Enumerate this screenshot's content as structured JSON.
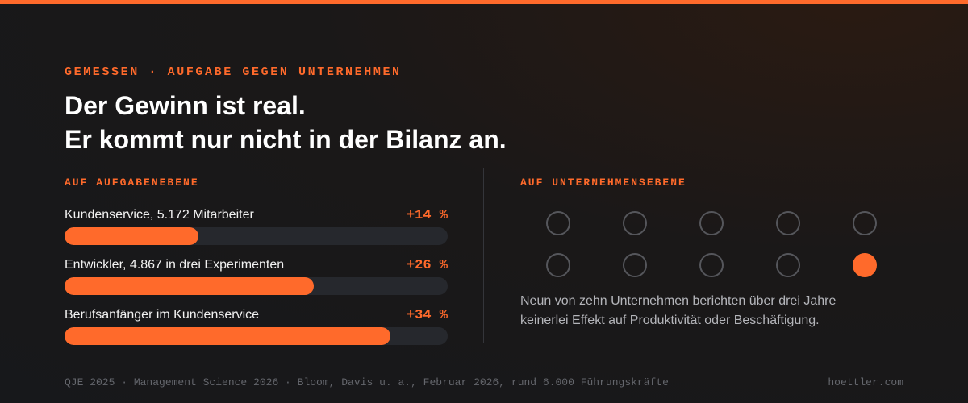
{
  "colors": {
    "accent": "#ff6a2b",
    "track": "#26282d",
    "dot_outline": "#55565b"
  },
  "header": {
    "eyebrow": "GEMESSEN · AUFGABE GEGEN UNTERNEHMEN",
    "headline_line1": "Der Gewinn ist real.",
    "headline_line2": "Er kommt nur nicht in der Bilanz an."
  },
  "left_section": {
    "label": "AUF AUFGABENEBENE"
  },
  "right_section": {
    "label": "AUF UNTERNEHMENSEBENE",
    "caption_line1": "Neun von zehn Unternehmen berichten über drei Jahre",
    "caption_line2": "keinerlei Effekt auf Produktivität oder Beschäftigung."
  },
  "chart_data": [
    {
      "type": "bar",
      "orientation": "horizontal",
      "categories": [
        "Kundenservice, 5.172 Mitarbeiter",
        "Entwickler, 4.867 in drei Experimenten",
        "Berufsanfänger im Kundenservice"
      ],
      "values": [
        14,
        26,
        34
      ],
      "value_labels": [
        "+14 %",
        "+26 %",
        "+34 %"
      ],
      "xlim": [
        0,
        40
      ],
      "title": "",
      "xlabel": "",
      "ylabel": "",
      "grid": false
    },
    {
      "type": "dot-matrix",
      "total": 10,
      "highlighted": 1,
      "rows": 2,
      "columns": 5
    }
  ],
  "footer": {
    "sources": "QJE 2025 · Management Science 2026 · Bloom, Davis u. a., Februar 2026, rund 6.000 Führungskräfte",
    "site": "hoettler.com"
  }
}
